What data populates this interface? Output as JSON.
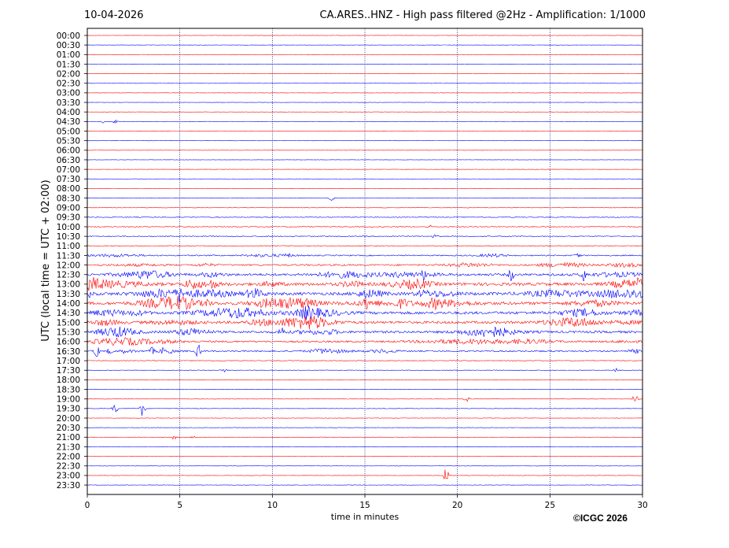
{
  "header": {
    "date": "10-04-2026",
    "title": "CA.ARES..HNZ - High pass filtered @2Hz - Amplification: 1/1000"
  },
  "footer": {
    "copyright": "©ICGC 2026"
  },
  "chart_data": {
    "type": "line",
    "xlabel": "time in minutes",
    "ylabel": "UTC (local time = UTC + 02:00)",
    "xlim": [
      0,
      30
    ],
    "x_ticks": [
      "0",
      "5",
      "10",
      "15",
      "20",
      "25",
      "30"
    ],
    "vertical_grid": [
      5,
      10,
      15,
      20,
      25
    ],
    "trace_colors": [
      "#ff0000",
      "#0000ff"
    ],
    "rows": [
      "00:00",
      "00:30",
      "01:00",
      "01:30",
      "02:00",
      "02:30",
      "03:00",
      "03:30",
      "04:00",
      "04:30",
      "05:00",
      "05:30",
      "06:00",
      "06:30",
      "07:00",
      "07:30",
      "08:00",
      "08:30",
      "09:00",
      "09:30",
      "10:00",
      "10:30",
      "11:00",
      "11:30",
      "12:00",
      "12:30",
      "13:00",
      "13:30",
      "14:00",
      "14:30",
      "15:00",
      "15:30",
      "16:00",
      "16:30",
      "17:00",
      "17:30",
      "18:00",
      "18:30",
      "19:00",
      "19:30",
      "20:00",
      "20:30",
      "21:00",
      "21:30",
      "22:00",
      "22:30",
      "23:00",
      "23:30"
    ],
    "noise_level": [
      0.3,
      0.3,
      0.3,
      0.3,
      0.3,
      0.3,
      0.3,
      0.3,
      0.3,
      0.4,
      0.3,
      0.3,
      0.3,
      0.3,
      0.3,
      0.3,
      0.3,
      0.5,
      0.6,
      0.8,
      0.9,
      1.0,
      0.8,
      1.2,
      1.6,
      2.4,
      3.0,
      3.0,
      3.0,
      2.8,
      2.6,
      2.4,
      1.8,
      1.5,
      0.8,
      0.6,
      0.4,
      0.4,
      0.5,
      0.5,
      0.4,
      0.4,
      0.4,
      0.4,
      0.4,
      0.4,
      0.4,
      0.4
    ],
    "events": [
      {
        "row": "04:30",
        "minute": 0.8,
        "amplitude": 2
      },
      {
        "row": "04:30",
        "minute": 1.5,
        "amplitude": 2
      },
      {
        "row": "08:30",
        "minute": 13.2,
        "amplitude": 4
      },
      {
        "row": "10:00",
        "minute": 18.5,
        "amplitude": 2
      },
      {
        "row": "10:30",
        "minute": 18.8,
        "amplitude": 3
      },
      {
        "row": "11:30",
        "minute": 10.8,
        "amplitude": 3
      },
      {
        "row": "11:30",
        "minute": 26.5,
        "amplitude": 4
      },
      {
        "row": "12:30",
        "minute": 18.2,
        "amplitude": 6
      },
      {
        "row": "12:30",
        "minute": 22.9,
        "amplitude": 9
      },
      {
        "row": "12:30",
        "minute": 26.8,
        "amplitude": 8
      },
      {
        "row": "13:00",
        "minute": 6.8,
        "amplitude": 7
      },
      {
        "row": "13:00",
        "minute": 29.8,
        "amplitude": 6
      },
      {
        "row": "13:30",
        "minute": 0.2,
        "amplitude": 5
      },
      {
        "row": "13:30",
        "minute": 5.0,
        "amplitude": 6
      },
      {
        "row": "14:00",
        "minute": 6.5,
        "amplitude": 6
      },
      {
        "row": "14:00",
        "minute": 15.1,
        "amplitude": 8
      },
      {
        "row": "15:30",
        "minute": 10.5,
        "amplitude": 9
      },
      {
        "row": "16:30",
        "minute": 0.5,
        "amplitude": 9
      },
      {
        "row": "16:30",
        "minute": 1.2,
        "amplitude": 4
      },
      {
        "row": "16:30",
        "minute": 1.9,
        "amplitude": 4
      },
      {
        "row": "16:30",
        "minute": 3.5,
        "amplitude": 4
      },
      {
        "row": "16:30",
        "minute": 4.1,
        "amplitude": 4
      },
      {
        "row": "16:30",
        "minute": 4.5,
        "amplitude": 4
      },
      {
        "row": "16:30",
        "minute": 6.0,
        "amplitude": 10
      },
      {
        "row": "17:30",
        "minute": 7.4,
        "amplitude": 2
      },
      {
        "row": "17:30",
        "minute": 28.6,
        "amplitude": 3
      },
      {
        "row": "19:00",
        "minute": 20.5,
        "amplitude": 6
      },
      {
        "row": "19:00",
        "minute": 29.6,
        "amplitude": 9
      },
      {
        "row": "19:30",
        "minute": 1.5,
        "amplitude": 8
      },
      {
        "row": "19:30",
        "minute": 3.0,
        "amplitude": 12
      },
      {
        "row": "21:00",
        "minute": 4.7,
        "amplitude": 3
      },
      {
        "row": "21:00",
        "minute": 5.7,
        "amplitude": 2
      },
      {
        "row": "23:00",
        "minute": 19.4,
        "amplitude": 11
      }
    ]
  }
}
